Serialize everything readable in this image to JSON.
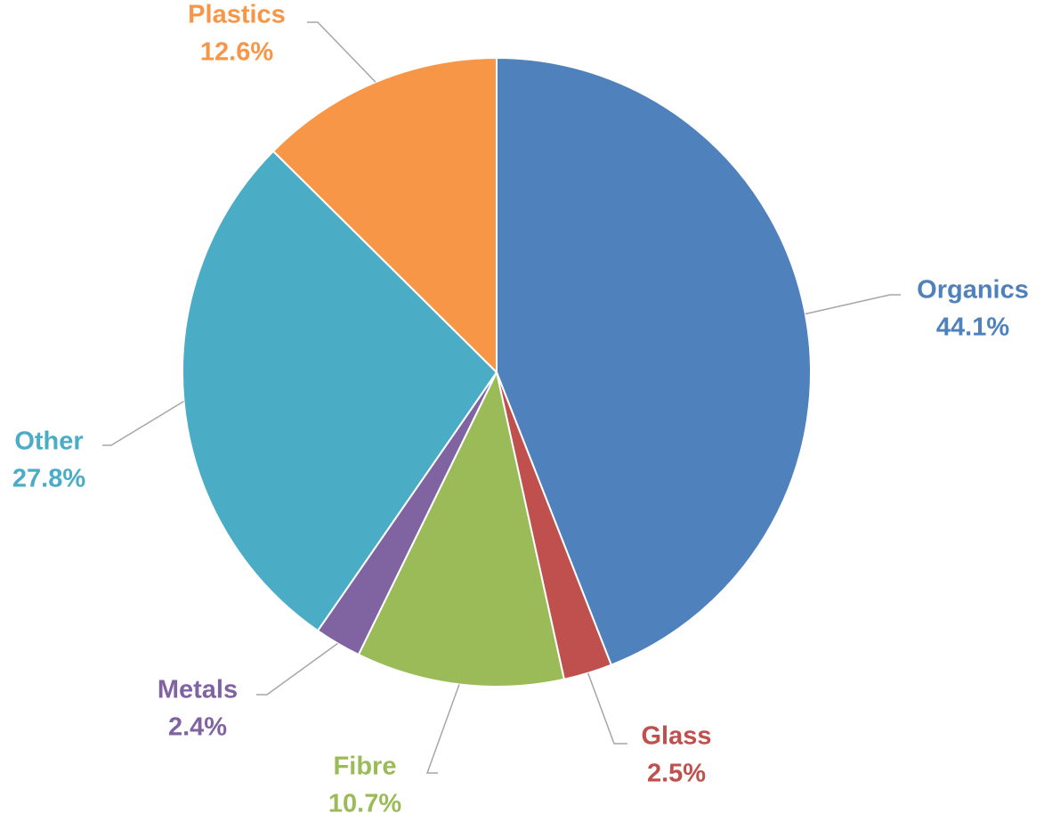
{
  "chart_data": {
    "type": "pie",
    "categories": [
      "Organics",
      "Glass",
      "Fibre",
      "Metals",
      "Other",
      "Plastics"
    ],
    "values": [
      44.1,
      2.5,
      10.7,
      2.4,
      27.8,
      12.6
    ],
    "value_labels": [
      "44.1%",
      "2.5%",
      "10.7%",
      "2.4%",
      "27.8%",
      "12.6%"
    ],
    "colors": [
      "#4f81bd",
      "#c0504d",
      "#9bbb59",
      "#8064a2",
      "#4bacc6",
      "#f79646"
    ]
  }
}
